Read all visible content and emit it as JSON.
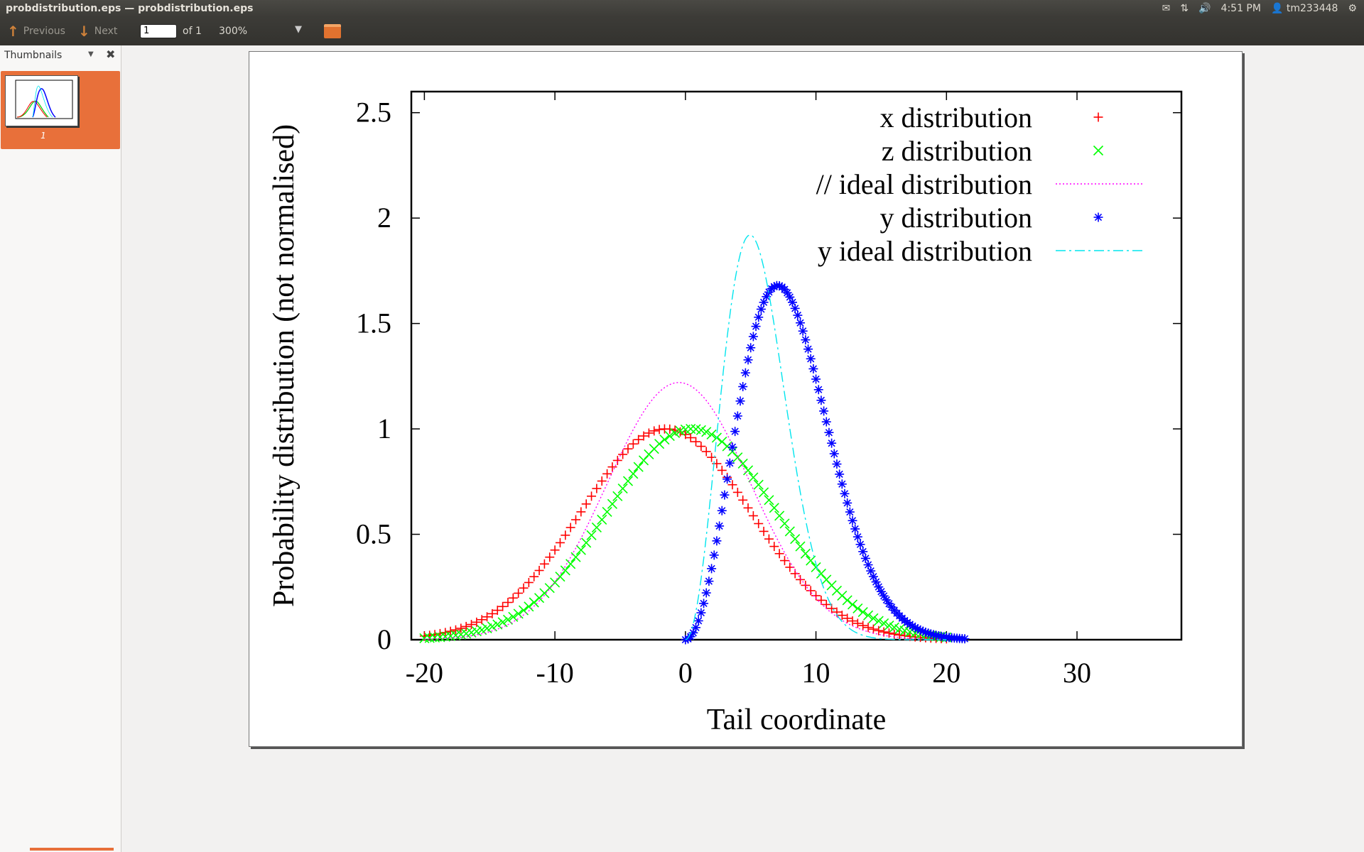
{
  "window": {
    "title": "probdistribution.eps — probdistribution.eps"
  },
  "indicators": {
    "mail_icon": "mail-icon",
    "network_icon": "network-icon",
    "volume_icon": "volume-icon",
    "time": "4:51 PM",
    "user_icon": "user-icon",
    "user": "tm233448",
    "session_icon": "gear-icon"
  },
  "toolbar": {
    "previous_label": "Previous",
    "next_label": "Next",
    "page_value": "1",
    "of_label": "of 1",
    "zoom": "300%"
  },
  "sidebar": {
    "title": "Thumbnails",
    "pages": [
      {
        "number": "1"
      }
    ]
  },
  "chart_data": {
    "type": "scatter",
    "xlabel": "Tail coordinate",
    "ylabel": "Probability distribution (not normalised)",
    "xlim": [
      -21,
      38
    ],
    "ylim": [
      0,
      2.6
    ],
    "x_ticks": [
      "-20",
      "-10",
      "0",
      "10",
      "20",
      "30"
    ],
    "y_ticks": [
      "0",
      "0.5",
      "1",
      "1.5",
      "2",
      "2.5"
    ],
    "legend_position": "top-right",
    "series": [
      {
        "name": "x distribution",
        "marker": "+",
        "color": "#ff0000",
        "mean": -1.5,
        "sigma": 6.5,
        "peak": 1.0,
        "x_range": [
          -20,
          20
        ]
      },
      {
        "name": "z distribution",
        "marker": "x",
        "color": "#00ff00",
        "mean": 0.5,
        "sigma": 6.5,
        "peak": 1.0,
        "x_range": [
          -20,
          20
        ]
      },
      {
        "name": "// ideal distribution",
        "style": "dotted",
        "color": "#ff00ff",
        "mean": -0.5,
        "sigma": 5.5,
        "peak": 1.22,
        "x_range": [
          -20,
          20
        ]
      },
      {
        "name": "y distribution",
        "marker": "*",
        "color": "#0000ff",
        "shape": "chi",
        "k": 3,
        "scale": 5,
        "peak": 1.68,
        "x_range": [
          0,
          21.5
        ]
      },
      {
        "name": "y ideal distribution",
        "style": "dash-dot",
        "color": "#00e5ee",
        "shape": "chi",
        "k": 3,
        "scale": 3.5,
        "peak": 1.92,
        "x_range": [
          0,
          20
        ]
      }
    ]
  }
}
